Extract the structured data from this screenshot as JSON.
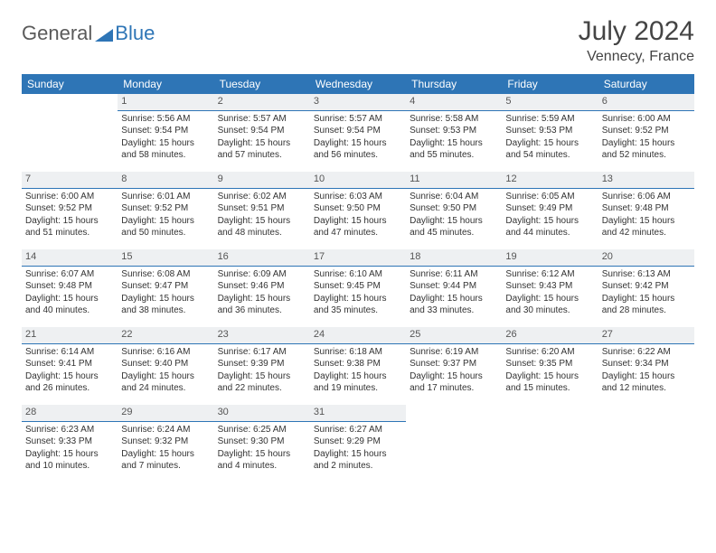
{
  "logo": {
    "text1": "General",
    "text2": "Blue"
  },
  "title": "July 2024",
  "location": "Vennecy, France",
  "colors": {
    "header_bg": "#2e75b6",
    "header_text": "#ffffff",
    "daynum_bg": "#eef0f2",
    "daynum_border": "#2e75b6",
    "page_bg": "#ffffff",
    "text": "#333333"
  },
  "weekdays": [
    "Sunday",
    "Monday",
    "Tuesday",
    "Wednesday",
    "Thursday",
    "Friday",
    "Saturday"
  ],
  "weeks": [
    [
      null,
      {
        "n": "1",
        "sr": "Sunrise: 5:56 AM",
        "ss": "Sunset: 9:54 PM",
        "d1": "Daylight: 15 hours",
        "d2": "and 58 minutes."
      },
      {
        "n": "2",
        "sr": "Sunrise: 5:57 AM",
        "ss": "Sunset: 9:54 PM",
        "d1": "Daylight: 15 hours",
        "d2": "and 57 minutes."
      },
      {
        "n": "3",
        "sr": "Sunrise: 5:57 AM",
        "ss": "Sunset: 9:54 PM",
        "d1": "Daylight: 15 hours",
        "d2": "and 56 minutes."
      },
      {
        "n": "4",
        "sr": "Sunrise: 5:58 AM",
        "ss": "Sunset: 9:53 PM",
        "d1": "Daylight: 15 hours",
        "d2": "and 55 minutes."
      },
      {
        "n": "5",
        "sr": "Sunrise: 5:59 AM",
        "ss": "Sunset: 9:53 PM",
        "d1": "Daylight: 15 hours",
        "d2": "and 54 minutes."
      },
      {
        "n": "6",
        "sr": "Sunrise: 6:00 AM",
        "ss": "Sunset: 9:52 PM",
        "d1": "Daylight: 15 hours",
        "d2": "and 52 minutes."
      }
    ],
    [
      {
        "n": "7",
        "sr": "Sunrise: 6:00 AM",
        "ss": "Sunset: 9:52 PM",
        "d1": "Daylight: 15 hours",
        "d2": "and 51 minutes."
      },
      {
        "n": "8",
        "sr": "Sunrise: 6:01 AM",
        "ss": "Sunset: 9:52 PM",
        "d1": "Daylight: 15 hours",
        "d2": "and 50 minutes."
      },
      {
        "n": "9",
        "sr": "Sunrise: 6:02 AM",
        "ss": "Sunset: 9:51 PM",
        "d1": "Daylight: 15 hours",
        "d2": "and 48 minutes."
      },
      {
        "n": "10",
        "sr": "Sunrise: 6:03 AM",
        "ss": "Sunset: 9:50 PM",
        "d1": "Daylight: 15 hours",
        "d2": "and 47 minutes."
      },
      {
        "n": "11",
        "sr": "Sunrise: 6:04 AM",
        "ss": "Sunset: 9:50 PM",
        "d1": "Daylight: 15 hours",
        "d2": "and 45 minutes."
      },
      {
        "n": "12",
        "sr": "Sunrise: 6:05 AM",
        "ss": "Sunset: 9:49 PM",
        "d1": "Daylight: 15 hours",
        "d2": "and 44 minutes."
      },
      {
        "n": "13",
        "sr": "Sunrise: 6:06 AM",
        "ss": "Sunset: 9:48 PM",
        "d1": "Daylight: 15 hours",
        "d2": "and 42 minutes."
      }
    ],
    [
      {
        "n": "14",
        "sr": "Sunrise: 6:07 AM",
        "ss": "Sunset: 9:48 PM",
        "d1": "Daylight: 15 hours",
        "d2": "and 40 minutes."
      },
      {
        "n": "15",
        "sr": "Sunrise: 6:08 AM",
        "ss": "Sunset: 9:47 PM",
        "d1": "Daylight: 15 hours",
        "d2": "and 38 minutes."
      },
      {
        "n": "16",
        "sr": "Sunrise: 6:09 AM",
        "ss": "Sunset: 9:46 PM",
        "d1": "Daylight: 15 hours",
        "d2": "and 36 minutes."
      },
      {
        "n": "17",
        "sr": "Sunrise: 6:10 AM",
        "ss": "Sunset: 9:45 PM",
        "d1": "Daylight: 15 hours",
        "d2": "and 35 minutes."
      },
      {
        "n": "18",
        "sr": "Sunrise: 6:11 AM",
        "ss": "Sunset: 9:44 PM",
        "d1": "Daylight: 15 hours",
        "d2": "and 33 minutes."
      },
      {
        "n": "19",
        "sr": "Sunrise: 6:12 AM",
        "ss": "Sunset: 9:43 PM",
        "d1": "Daylight: 15 hours",
        "d2": "and 30 minutes."
      },
      {
        "n": "20",
        "sr": "Sunrise: 6:13 AM",
        "ss": "Sunset: 9:42 PM",
        "d1": "Daylight: 15 hours",
        "d2": "and 28 minutes."
      }
    ],
    [
      {
        "n": "21",
        "sr": "Sunrise: 6:14 AM",
        "ss": "Sunset: 9:41 PM",
        "d1": "Daylight: 15 hours",
        "d2": "and 26 minutes."
      },
      {
        "n": "22",
        "sr": "Sunrise: 6:16 AM",
        "ss": "Sunset: 9:40 PM",
        "d1": "Daylight: 15 hours",
        "d2": "and 24 minutes."
      },
      {
        "n": "23",
        "sr": "Sunrise: 6:17 AM",
        "ss": "Sunset: 9:39 PM",
        "d1": "Daylight: 15 hours",
        "d2": "and 22 minutes."
      },
      {
        "n": "24",
        "sr": "Sunrise: 6:18 AM",
        "ss": "Sunset: 9:38 PM",
        "d1": "Daylight: 15 hours",
        "d2": "and 19 minutes."
      },
      {
        "n": "25",
        "sr": "Sunrise: 6:19 AM",
        "ss": "Sunset: 9:37 PM",
        "d1": "Daylight: 15 hours",
        "d2": "and 17 minutes."
      },
      {
        "n": "26",
        "sr": "Sunrise: 6:20 AM",
        "ss": "Sunset: 9:35 PM",
        "d1": "Daylight: 15 hours",
        "d2": "and 15 minutes."
      },
      {
        "n": "27",
        "sr": "Sunrise: 6:22 AM",
        "ss": "Sunset: 9:34 PM",
        "d1": "Daylight: 15 hours",
        "d2": "and 12 minutes."
      }
    ],
    [
      {
        "n": "28",
        "sr": "Sunrise: 6:23 AM",
        "ss": "Sunset: 9:33 PM",
        "d1": "Daylight: 15 hours",
        "d2": "and 10 minutes."
      },
      {
        "n": "29",
        "sr": "Sunrise: 6:24 AM",
        "ss": "Sunset: 9:32 PM",
        "d1": "Daylight: 15 hours",
        "d2": "and 7 minutes."
      },
      {
        "n": "30",
        "sr": "Sunrise: 6:25 AM",
        "ss": "Sunset: 9:30 PM",
        "d1": "Daylight: 15 hours",
        "d2": "and 4 minutes."
      },
      {
        "n": "31",
        "sr": "Sunrise: 6:27 AM",
        "ss": "Sunset: 9:29 PM",
        "d1": "Daylight: 15 hours",
        "d2": "and 2 minutes."
      },
      null,
      null,
      null
    ]
  ]
}
